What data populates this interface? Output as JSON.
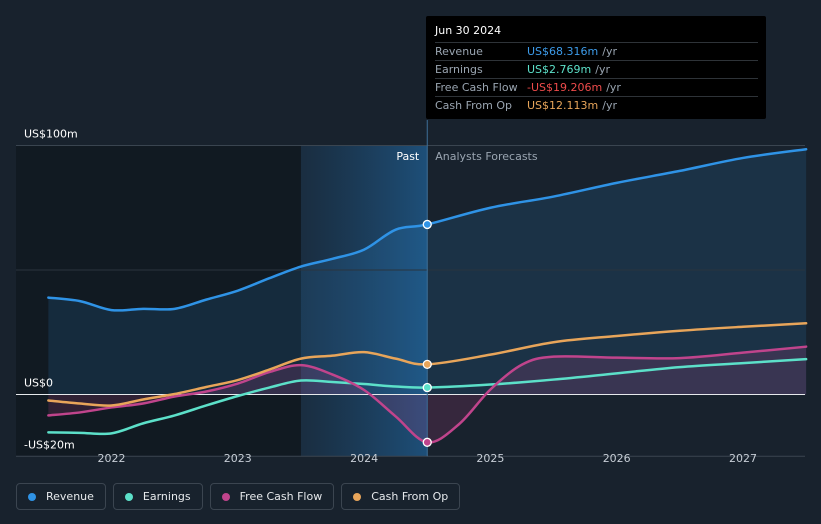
{
  "chart_data": {
    "type": "line",
    "y_unit": "US$ m",
    "ylim": [
      -20,
      100
    ],
    "x_range": [
      2021.5,
      2027.5
    ],
    "divider_x": 2024.5,
    "past_label": "Past",
    "forecast_label": "Analysts Forecasts",
    "y_labels": [
      {
        "value": 100,
        "text": "US$100m"
      },
      {
        "value": 0,
        "text": "US$0"
      },
      {
        "value": -20,
        "text": "-US$20m"
      }
    ],
    "x_ticks": [
      {
        "value": 2022,
        "text": "2022"
      },
      {
        "value": 2023,
        "text": "2023"
      },
      {
        "value": 2024,
        "text": "2024"
      },
      {
        "value": 2025,
        "text": "2025"
      },
      {
        "value": 2026,
        "text": "2026"
      },
      {
        "value": 2027,
        "text": "2027"
      }
    ],
    "series": [
      {
        "name": "Revenue",
        "color": "#2f93e6",
        "fill": true,
        "points": [
          [
            2021.5,
            38.9
          ],
          [
            2021.75,
            37.5
          ],
          [
            2022.0,
            33.9
          ],
          [
            2022.25,
            34.4
          ],
          [
            2022.5,
            34.4
          ],
          [
            2022.75,
            38.1
          ],
          [
            2023.0,
            41.7
          ],
          [
            2023.25,
            46.7
          ],
          [
            2023.5,
            51.4
          ],
          [
            2023.75,
            54.5
          ],
          [
            2024.0,
            58.2
          ],
          [
            2024.25,
            66.2
          ],
          [
            2024.5,
            68.3
          ],
          [
            2025.0,
            75
          ],
          [
            2025.5,
            79.5
          ],
          [
            2026.0,
            85
          ],
          [
            2026.5,
            89.8
          ],
          [
            2027.0,
            95
          ],
          [
            2027.5,
            98.5
          ]
        ]
      },
      {
        "name": "Earnings",
        "color": "#5ce0c9",
        "fill": false,
        "points": [
          [
            2021.5,
            -15.2
          ],
          [
            2021.75,
            -15.4
          ],
          [
            2022.0,
            -15.6
          ],
          [
            2022.25,
            -11.6
          ],
          [
            2022.5,
            -8.4
          ],
          [
            2022.75,
            -4.4
          ],
          [
            2023.0,
            -0.6
          ],
          [
            2023.25,
            2.8
          ],
          [
            2023.5,
            5.6
          ],
          [
            2023.75,
            5.0
          ],
          [
            2024.0,
            4.2
          ],
          [
            2024.25,
            3.2
          ],
          [
            2024.5,
            2.8
          ],
          [
            2025.0,
            4.0
          ],
          [
            2025.5,
            6.0
          ],
          [
            2026.0,
            8.5
          ],
          [
            2026.5,
            11.0
          ],
          [
            2027.0,
            12.6
          ],
          [
            2027.5,
            14.2
          ]
        ]
      },
      {
        "name": "Free Cash Flow",
        "color": "#c0448c",
        "fill": true,
        "points": [
          [
            2021.5,
            -8.4
          ],
          [
            2021.75,
            -7.2
          ],
          [
            2022.0,
            -5.2
          ],
          [
            2022.25,
            -3.6
          ],
          [
            2022.5,
            -0.8
          ],
          [
            2022.75,
            1.2
          ],
          [
            2023.0,
            4.4
          ],
          [
            2023.25,
            9.0
          ],
          [
            2023.5,
            11.8
          ],
          [
            2023.75,
            8.0
          ],
          [
            2024.0,
            1.8
          ],
          [
            2024.25,
            -8.8
          ],
          [
            2024.5,
            -19.2
          ],
          [
            2024.75,
            -12.0
          ],
          [
            2025.0,
            2.0
          ],
          [
            2025.25,
            12.0
          ],
          [
            2025.5,
            15.2
          ],
          [
            2026.0,
            14.8
          ],
          [
            2026.5,
            14.6
          ],
          [
            2027.0,
            16.8
          ],
          [
            2027.5,
            19.2
          ]
        ]
      },
      {
        "name": "Cash From Op",
        "color": "#e8a55a",
        "fill": false,
        "points": [
          [
            2021.5,
            -2.4
          ],
          [
            2021.75,
            -3.6
          ],
          [
            2022.0,
            -4.4
          ],
          [
            2022.25,
            -2.0
          ],
          [
            2022.5,
            0.2
          ],
          [
            2022.75,
            3.0
          ],
          [
            2023.0,
            5.8
          ],
          [
            2023.25,
            10.0
          ],
          [
            2023.5,
            14.4
          ],
          [
            2023.75,
            15.6
          ],
          [
            2024.0,
            17.0
          ],
          [
            2024.25,
            14.4
          ],
          [
            2024.5,
            12.1
          ],
          [
            2025.0,
            16.0
          ],
          [
            2025.5,
            21.0
          ],
          [
            2026.0,
            23.5
          ],
          [
            2026.5,
            25.6
          ],
          [
            2027.0,
            27.2
          ],
          [
            2027.5,
            28.6
          ]
        ]
      }
    ],
    "highlight": {
      "x": 2024.5,
      "values": [
        68.3,
        2.8,
        -19.2,
        12.1
      ]
    }
  },
  "tooltip": {
    "date": "Jun 30 2024",
    "unit": "/yr",
    "rows": [
      {
        "label": "Revenue",
        "value": "US$68.316m",
        "color": "#3d9be9"
      },
      {
        "label": "Earnings",
        "value": "US$2.769m",
        "color": "#5ce0c9"
      },
      {
        "label": "Free Cash Flow",
        "value": "-US$19.206m",
        "color": "#ee4b4b"
      },
      {
        "label": "Cash From Op",
        "value": "US$12.113m",
        "color": "#e8a55a"
      }
    ]
  },
  "legend": [
    {
      "label": "Revenue",
      "color": "#2f93e6"
    },
    {
      "label": "Earnings",
      "color": "#5ce0c9"
    },
    {
      "label": "Free Cash Flow",
      "color": "#c0448c"
    },
    {
      "label": "Cash From Op",
      "color": "#e8a55a"
    }
  ]
}
